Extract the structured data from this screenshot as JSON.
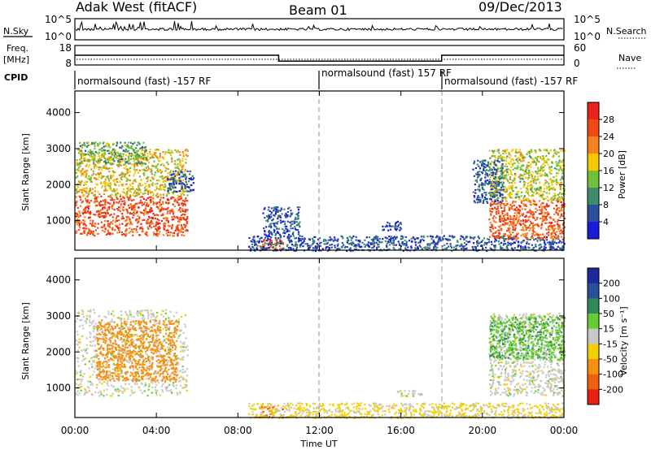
{
  "header": {
    "station": "Adak West (fitACF)",
    "beam": "Beam 01",
    "date": "09/Dec/2013"
  },
  "noise_panel": {
    "left_label": "N.Sky",
    "right_label": "N.Search",
    "y_ticks": [
      "10^5",
      "10^0"
    ]
  },
  "freq_panel": {
    "left_label_lines": [
      "Freq.",
      "[MHz]"
    ],
    "left_ticks": [
      "18",
      "8"
    ],
    "right_ticks": [
      "60",
      "0"
    ],
    "right_label": "Nave"
  },
  "cpid_panel": {
    "label": "CPID",
    "segments": [
      "normalsound (fast) -157 RF",
      "normalsound (fast) 157 RF",
      "normalsound (fast) -157 RF"
    ]
  },
  "power_panel": {
    "y_label": "Slant Range [km]",
    "colorbar_label": "Power [dB]",
    "colorbar_ticks": [
      "28",
      "24",
      "20",
      "16",
      "12",
      "8",
      "4"
    ],
    "colorbar_colors": [
      "#e8241c",
      "#f04a14",
      "#f5821e",
      "#f5c800",
      "#72c03a",
      "#3e8c6e",
      "#2b4f9c",
      "#1a1adc"
    ]
  },
  "velocity_panel": {
    "y_label": "Slant Range [km]",
    "colorbar_label": "Velocity [m s⁻¹]",
    "colorbar_ticks": [
      "200",
      "100",
      "50",
      "15",
      "-15",
      "-50",
      "-100",
      "-200"
    ],
    "colorbar_colors": [
      "#1a2a9c",
      "#28509a",
      "#2e8a5a",
      "#66cc33",
      "#c8c8c8",
      "#f5d000",
      "#f59010",
      "#f06010",
      "#e82010"
    ]
  },
  "x_axis": {
    "label": "Time UT",
    "ticks": [
      "00:00",
      "04:00",
      "08:00",
      "12:00",
      "16:00",
      "20:00",
      "00:00"
    ]
  },
  "chart_data": {
    "type": "heatmap",
    "title": "Adak West (fitACF)",
    "xlabel": "Time UT",
    "ylabel": "Slant Range [km]",
    "xlim": [
      0,
      24
    ],
    "ylim": [
      180,
      4600
    ],
    "y_ticks": [
      1000,
      2000,
      3000,
      4000
    ],
    "grid": false,
    "frequency_mhz": [
      {
        "start": 0,
        "end": 10,
        "value": 13
      },
      {
        "start": 10,
        "end": 18,
        "value": 10
      },
      {
        "start": 18,
        "end": 24,
        "value": 13
      }
    ],
    "cpid_changes_hours": [
      12,
      18
    ],
    "power_scatter_regions": [
      {
        "t0": 0.0,
        "t1": 5.5,
        "r0": 600,
        "r1": 1700,
        "power_db": 26
      },
      {
        "t0": 0.0,
        "t1": 5.5,
        "r0": 1700,
        "r1": 3000,
        "power_db": 18
      },
      {
        "t0": 0.2,
        "t1": 3.5,
        "r0": 2600,
        "r1": 3200,
        "power_db": 12
      },
      {
        "t0": 4.5,
        "t1": 5.8,
        "r0": 1800,
        "r1": 2400,
        "power_db": 6
      },
      {
        "t0": 9.0,
        "t1": 10.2,
        "r0": 200,
        "r1": 500,
        "power_db": 24
      },
      {
        "t0": 9.2,
        "t1": 11.0,
        "r0": 600,
        "r1": 1400,
        "power_db": 6
      },
      {
        "t0": 15.0,
        "t1": 16.0,
        "r0": 750,
        "r1": 1000,
        "power_db": 5
      },
      {
        "t0": 8.5,
        "t1": 24.0,
        "r0": 180,
        "r1": 600,
        "power_db": 6
      },
      {
        "t0": 20.3,
        "t1": 24.0,
        "r0": 500,
        "r1": 1600,
        "power_db": 25
      },
      {
        "t0": 20.3,
        "t1": 24.0,
        "r0": 1600,
        "r1": 3000,
        "power_db": 16
      },
      {
        "t0": 19.5,
        "t1": 21.0,
        "r0": 1500,
        "r1": 2700,
        "power_db": 7
      }
    ],
    "velocity_scatter_regions": [
      {
        "t0": 0.0,
        "t1": 5.5,
        "r0": 800,
        "r1": 3200,
        "velocity": 0
      },
      {
        "t0": 1.0,
        "t1": 5.0,
        "r0": 1200,
        "r1": 2900,
        "velocity": -70
      },
      {
        "t0": 9.0,
        "t1": 10.2,
        "r0": 200,
        "r1": 500,
        "velocity": -100
      },
      {
        "t0": 8.5,
        "t1": 24.0,
        "r0": 180,
        "r1": 600,
        "velocity": -20
      },
      {
        "t0": 15.8,
        "t1": 17.0,
        "r0": 800,
        "r1": 950,
        "velocity": 0
      },
      {
        "t0": 20.3,
        "t1": 24.0,
        "r0": 800,
        "r1": 3100,
        "velocity": 0
      },
      {
        "t0": 20.3,
        "t1": 24.0,
        "r0": 1800,
        "r1": 3000,
        "velocity": 40
      }
    ]
  }
}
